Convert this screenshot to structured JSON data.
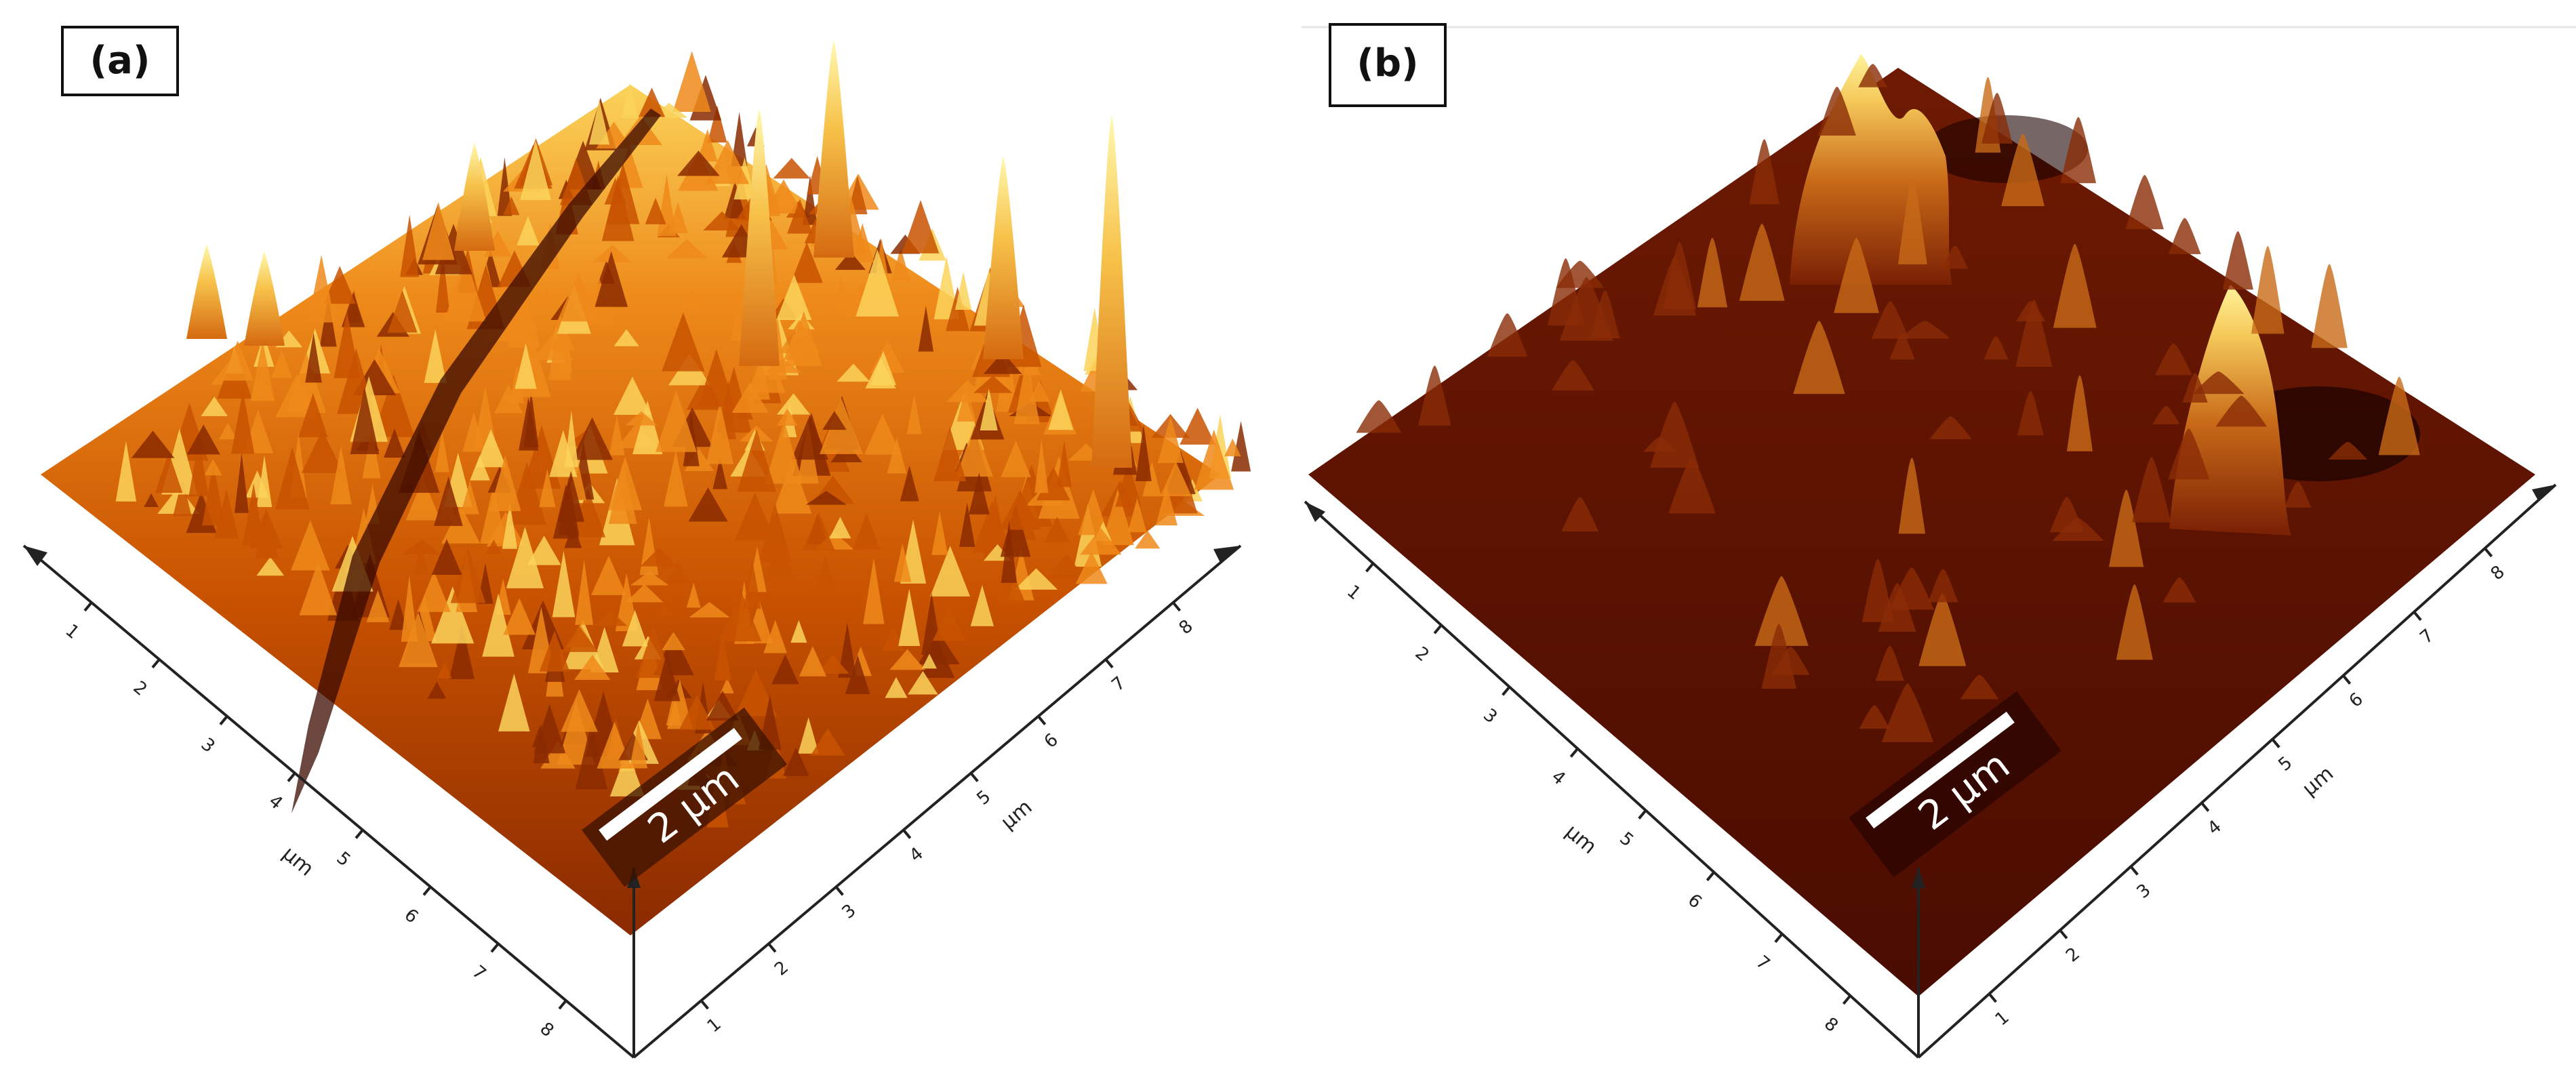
{
  "panels": [
    {
      "label": "(a)",
      "scale_bar": "2 μm",
      "axis_x_unit": "μm",
      "axis_y_unit": "μm",
      "ticks_x": [
        "1",
        "2",
        "3",
        "4",
        "5",
        "6",
        "7",
        "8"
      ],
      "ticks_y": [
        "1",
        "2",
        "3",
        "4",
        "5",
        "6",
        "7",
        "8"
      ],
      "colormap": [
        "#3a0a00",
        "#8a2a00",
        "#c85200",
        "#ee8a1a",
        "#fbd35a",
        "#fff9b0"
      ],
      "surface": "rough"
    },
    {
      "label": "(b)",
      "scale_bar": "2 μm",
      "axis_x_unit": "μm",
      "axis_y_unit": "μm",
      "ticks_x": [
        "1",
        "2",
        "3",
        "4",
        "5",
        "6",
        "7",
        "8"
      ],
      "ticks_y": [
        "1",
        "2",
        "3",
        "4",
        "5",
        "6",
        "7",
        "8"
      ],
      "colormap": [
        "#1a0200",
        "#4a0c00",
        "#6e1a02",
        "#9a3a08",
        "#e4962c",
        "#fff39a"
      ],
      "surface": "smooth"
    }
  ]
}
